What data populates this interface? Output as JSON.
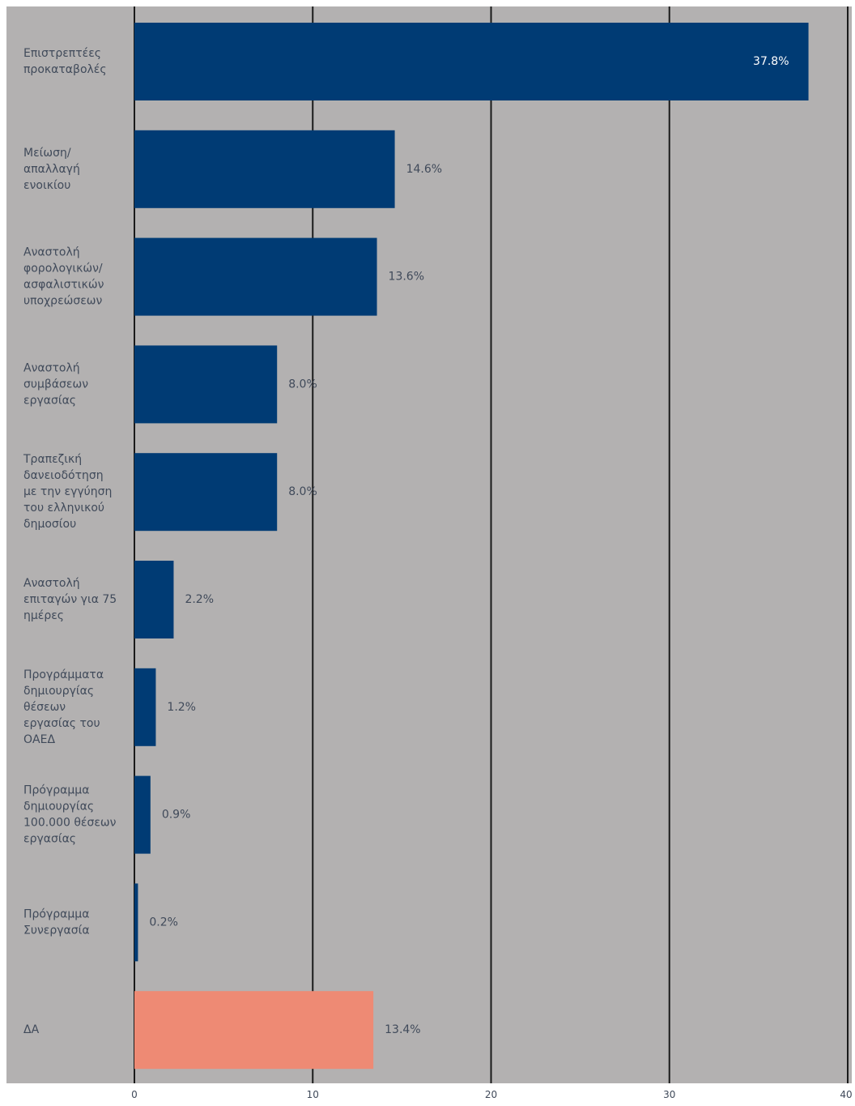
{
  "chart_data": {
    "type": "bar",
    "orientation": "horizontal",
    "categories": [
      "Επιστρεπτέες προκαταβολές",
      "Μείωση/ απαλλαγή ενοικίου",
      "Αναστολή φορολογικών/ ασφαλιστικών υποχρεώσεων",
      "Αναστολή συμβάσεων εργασίας",
      "Τραπεζική δανειοδότηση με την εγγύηση του ελληνικού δημοσίου",
      "Αναστολή επιταγών για 75 ημέρες",
      "Προγράμματα δημιουργίας θέσεων εργασίας του ΟΑΕΔ",
      "Πρόγραμμα δημιουργίας 100.000 θέσεων εργασίας",
      "Πρόγραμμα Συνεργασία",
      "ΔΑ"
    ],
    "label_lines": [
      [
        "Επιστρεπτέες",
        "προκαταβολές"
      ],
      [
        "Μείωση/",
        "απαλλαγή",
        "ενοικίου"
      ],
      [
        "Αναστολή",
        "φορολογικών/",
        "ασφαλιστικών",
        "υποχρεώσεων"
      ],
      [
        "Αναστολή",
        "συμβάσεων",
        "εργασίας"
      ],
      [
        "Τραπεζική",
        "δανειοδότηση",
        "με την εγγύηση",
        "του ελληνικού",
        "δημοσίου"
      ],
      [
        "Αναστολή",
        "επιταγών για 75",
        "ημέρες"
      ],
      [
        "Προγράμματα",
        "δημιουργίας",
        "θέσεων",
        "εργασίας του",
        "ΟΑΕΔ"
      ],
      [
        "Πρόγραμμα",
        "δημιουργίας",
        "100.000 θέσεων",
        "εργασίας"
      ],
      [
        "Πρόγραμμα",
        "Συνεργασία"
      ],
      [
        "ΔΑ"
      ]
    ],
    "values": [
      37.8,
      14.6,
      13.6,
      8.0,
      8.0,
      2.2,
      1.2,
      0.9,
      0.2,
      13.4
    ],
    "value_labels": [
      "37.8%",
      "14.6%",
      "13.6%",
      "8.0%",
      "8.0%",
      "2.2%",
      "1.2%",
      "0.9%",
      "0.2%",
      "13.4%"
    ],
    "xlim": [
      0,
      40
    ],
    "xticks": [
      0,
      10,
      20,
      30,
      40
    ],
    "grid": true,
    "title": "",
    "xlabel": "",
    "ylabel": "",
    "colors": {
      "background": "#b3b1b1",
      "bar": "#003b74",
      "bar_highlight": "#ee8a74",
      "gridline": "#1a1a1a",
      "text": "#404a5a",
      "value_label_inside": "#ffffff"
    },
    "highlight_index": 9
  }
}
